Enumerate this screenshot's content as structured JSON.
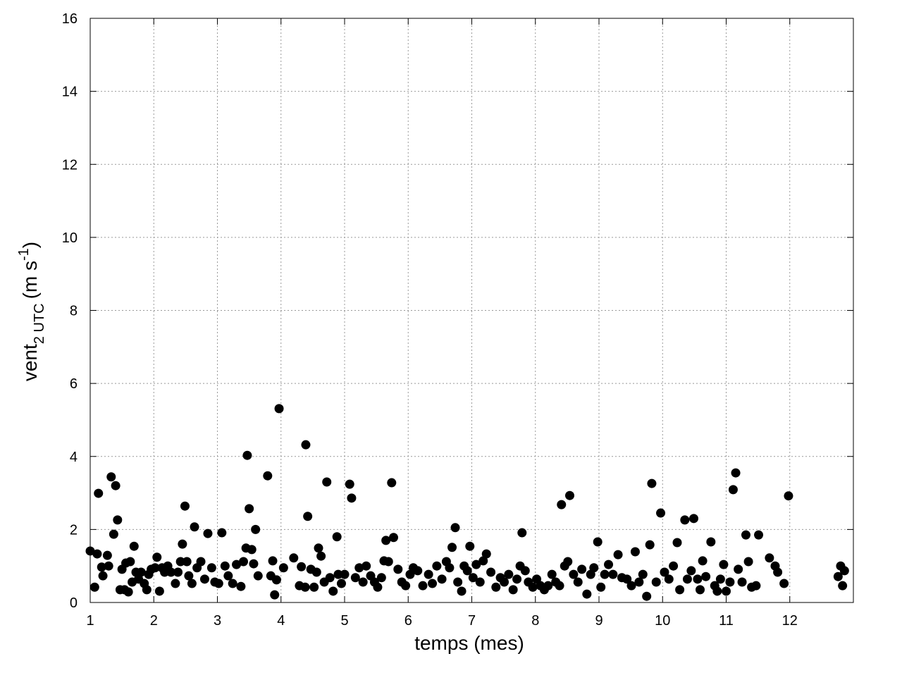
{
  "chart_data": {
    "type": "scatter",
    "xlabel": "temps (mes)",
    "ylabel": {
      "text": "vent",
      "sub": "2 UTC",
      "unit": "(m s",
      "sup": "-1",
      "close": ")"
    },
    "xlim": [
      1,
      13
    ],
    "ylim": [
      0,
      16
    ],
    "xticks": [
      1,
      2,
      3,
      4,
      5,
      6,
      7,
      8,
      9,
      10,
      11,
      12
    ],
    "yticks": [
      0,
      2,
      4,
      6,
      8,
      10,
      12,
      14,
      16
    ],
    "grid": true,
    "color": "#000000",
    "x": [
      1.0,
      1.07,
      1.11,
      1.13,
      1.18,
      1.2,
      1.27,
      1.29,
      1.33,
      1.37,
      1.4,
      1.43,
      1.47,
      1.5,
      1.54,
      1.56,
      1.6,
      1.63,
      1.66,
      1.69,
      1.72,
      1.76,
      1.8,
      1.85,
      1.89,
      1.92,
      1.96,
      2.02,
      2.05,
      2.09,
      2.13,
      2.17,
      2.22,
      2.27,
      2.34,
      2.38,
      2.42,
      2.45,
      2.49,
      2.52,
      2.55,
      2.6,
      2.64,
      2.68,
      2.74,
      2.8,
      2.85,
      2.91,
      2.96,
      3.02,
      3.07,
      3.12,
      3.17,
      3.24,
      3.3,
      3.37,
      3.41,
      3.45,
      3.47,
      3.5,
      3.54,
      3.57,
      3.6,
      3.64,
      3.79,
      3.84,
      3.87,
      3.9,
      3.93,
      3.97,
      4.04,
      4.2,
      4.29,
      4.32,
      4.38,
      4.39,
      4.42,
      4.47,
      4.52,
      4.56,
      4.59,
      4.63,
      4.68,
      4.72,
      4.77,
      4.82,
      4.88,
      4.9,
      4.95,
      5.0,
      5.08,
      5.11,
      5.17,
      5.23,
      5.29,
      5.34,
      5.41,
      5.47,
      5.52,
      5.58,
      5.62,
      5.65,
      5.69,
      5.74,
      5.77,
      5.84,
      5.9,
      5.96,
      6.03,
      6.08,
      6.15,
      6.23,
      6.32,
      6.38,
      6.45,
      6.53,
      6.6,
      6.65,
      6.69,
      6.74,
      6.78,
      6.84,
      6.88,
      6.93,
      6.97,
      7.02,
      7.07,
      7.13,
      7.18,
      7.23,
      7.3,
      7.38,
      7.45,
      7.51,
      7.58,
      7.65,
      7.71,
      7.76,
      7.79,
      7.84,
      7.89,
      7.96,
      8.02,
      8.08,
      8.14,
      8.2,
      8.26,
      8.32,
      8.38,
      8.41,
      8.46,
      8.51,
      8.54,
      8.6,
      8.67,
      8.73,
      8.81,
      8.87,
      8.92,
      8.98,
      9.03,
      9.09,
      9.15,
      9.22,
      9.3,
      9.36,
      9.44,
      9.51,
      9.57,
      9.63,
      9.69,
      9.75,
      9.8,
      9.83,
      9.9,
      9.97,
      10.03,
      10.1,
      10.17,
      10.23,
      10.27,
      10.35,
      10.39,
      10.45,
      10.49,
      10.55,
      10.59,
      10.63,
      10.68,
      10.76,
      10.82,
      10.86,
      10.91,
      10.96,
      11.0,
      11.06,
      11.11,
      11.15,
      11.19,
      11.25,
      11.31,
      11.35,
      11.4,
      11.47,
      11.51,
      11.68,
      11.77,
      11.81,
      11.91,
      11.98,
      12.76,
      12.8,
      12.83,
      12.86
    ],
    "y": [
      1.41,
      0.42,
      1.33,
      2.99,
      0.97,
      0.73,
      1.29,
      1.0,
      3.44,
      1.87,
      3.2,
      2.26,
      0.35,
      0.91,
      0.35,
      1.08,
      0.29,
      1.12,
      0.56,
      1.54,
      0.83,
      0.64,
      0.83,
      0.52,
      0.35,
      0.77,
      0.91,
      0.95,
      1.24,
      0.31,
      0.95,
      0.83,
      1.0,
      0.83,
      0.52,
      0.83,
      1.12,
      1.6,
      2.64,
      1.12,
      0.73,
      0.52,
      2.07,
      0.95,
      1.12,
      0.64,
      1.89,
      0.95,
      0.56,
      0.52,
      1.91,
      1.0,
      0.73,
      0.52,
      1.04,
      0.44,
      1.12,
      1.49,
      4.03,
      2.57,
      1.45,
      1.06,
      2.0,
      0.73,
      3.47,
      0.73,
      1.14,
      0.21,
      0.62,
      5.31,
      0.95,
      1.22,
      0.46,
      0.98,
      0.42,
      4.32,
      2.36,
      0.91,
      0.42,
      0.83,
      1.49,
      1.27,
      0.56,
      3.3,
      0.68,
      0.31,
      1.8,
      0.77,
      0.52,
      0.77,
      3.24,
      2.86,
      0.68,
      0.95,
      0.56,
      1.0,
      0.73,
      0.56,
      0.42,
      0.68,
      1.14,
      1.7,
      1.12,
      3.28,
      1.78,
      0.91,
      0.56,
      0.46,
      0.77,
      0.95,
      0.87,
      0.46,
      0.77,
      0.52,
      1.0,
      0.64,
      1.12,
      0.95,
      1.51,
      2.05,
      0.56,
      0.31,
      1.0,
      0.87,
      1.54,
      0.68,
      1.04,
      0.56,
      1.14,
      1.33,
      0.83,
      0.42,
      0.68,
      0.56,
      0.77,
      0.35,
      0.64,
      1.0,
      1.91,
      0.87,
      0.56,
      0.42,
      0.64,
      0.46,
      0.35,
      0.46,
      0.77,
      0.56,
      0.46,
      2.68,
      1.0,
      1.12,
      2.93,
      0.77,
      0.56,
      0.91,
      0.23,
      0.77,
      0.95,
      1.66,
      0.42,
      0.77,
      1.04,
      0.77,
      1.31,
      0.68,
      0.64,
      0.46,
      1.39,
      0.56,
      0.77,
      0.17,
      1.58,
      3.26,
      0.56,
      2.45,
      0.83,
      0.64,
      1.0,
      1.64,
      0.35,
      2.26,
      0.64,
      0.87,
      2.3,
      0.64,
      0.35,
      1.14,
      0.71,
      1.66,
      0.46,
      0.31,
      0.64,
      1.04,
      0.31,
      0.56,
      3.09,
      3.55,
      0.91,
      0.56,
      1.85,
      1.12,
      0.42,
      0.46,
      1.85,
      1.22,
      1.0,
      0.83,
      0.52,
      2.92,
      0.71,
      1.0,
      0.46,
      0.87
    ]
  }
}
